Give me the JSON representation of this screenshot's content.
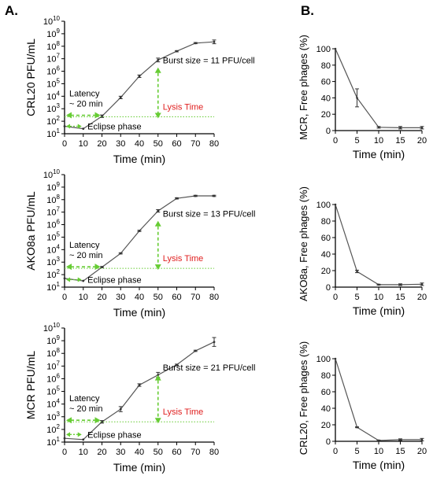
{
  "panel_labels": {
    "a": "A.",
    "b": "B."
  },
  "colors": {
    "line": "#555555",
    "annotation_green": "#66cc33",
    "lysis_red": "#e02020",
    "text": "#000000"
  },
  "chart_data": [
    {
      "type": "line",
      "panel": "A",
      "xlabel": "Time (min)",
      "ylabel": "CRL20 PFU/mL",
      "scale_y": "log10",
      "xlim": [
        0,
        80
      ],
      "ylim_exponent": [
        1,
        10
      ],
      "x_ticks": [
        "0",
        "10",
        "20",
        "30",
        "40",
        "50",
        "60",
        "70",
        "80"
      ],
      "y_ticks": [
        "10¹",
        "10²",
        "10³",
        "10⁴",
        "10⁵",
        "10⁶",
        "10⁷",
        "10⁸",
        "10⁹",
        "10¹⁰"
      ],
      "x": [
        0,
        10,
        20,
        30,
        40,
        50,
        60,
        70,
        80
      ],
      "log10_y": [
        1.6,
        1.4,
        2.4,
        3.9,
        5.6,
        6.9,
        7.6,
        8.25,
        8.35
      ],
      "log10_err": [
        0.0,
        0.0,
        0.1,
        0.1,
        0.1,
        0.15,
        0.05,
        0.05,
        0.15
      ],
      "annotations": {
        "burst_size": "Burst size = 11 PFU/cell",
        "lysis_time": "Lysis Time",
        "latency_line1": "Latency",
        "latency_line2": "~ 20 min",
        "eclipse": "Eclipse phase",
        "plateau_log10": 2.35
      }
    },
    {
      "type": "line",
      "panel": "A",
      "xlabel": "Time (min)",
      "ylabel": "AKO8a PFU/mL",
      "scale_y": "log10",
      "xlim": [
        0,
        80
      ],
      "ylim_exponent": [
        1,
        10
      ],
      "x_ticks": [
        "0",
        "10",
        "20",
        "30",
        "40",
        "50",
        "60",
        "70",
        "80"
      ],
      "y_ticks": [
        "10¹",
        "10²",
        "10³",
        "10⁴",
        "10⁵",
        "10⁶",
        "10⁷",
        "10⁸",
        "10⁹",
        "10¹⁰"
      ],
      "x": [
        0,
        10,
        20,
        30,
        40,
        50,
        60,
        70,
        80
      ],
      "log10_y": [
        1.7,
        1.5,
        2.6,
        3.7,
        5.5,
        7.1,
        8.1,
        8.3,
        8.3
      ],
      "log10_err": [
        0.0,
        0.0,
        0.05,
        0.05,
        0.05,
        0.1,
        0.05,
        0.05,
        0.05
      ],
      "annotations": {
        "burst_size": "Burst size = 13 PFU/cell",
        "lysis_time": "Lysis Time",
        "latency_line1": "Latency",
        "latency_line2": "~ 20 min",
        "eclipse": "Eclipse phase",
        "plateau_log10": 2.5
      }
    },
    {
      "type": "line",
      "panel": "A",
      "xlabel": "Time (min)",
      "ylabel": "MCR PFU/mL",
      "scale_y": "log10",
      "xlim": [
        0,
        80
      ],
      "ylim_exponent": [
        1,
        10
      ],
      "x_ticks": [
        "0",
        "10",
        "20",
        "30",
        "40",
        "50",
        "60",
        "70",
        "80"
      ],
      "y_ticks": [
        "10¹",
        "10²",
        "10³",
        "10⁴",
        "10⁵",
        "10⁶",
        "10⁷",
        "10⁸",
        "10⁹",
        "10¹⁰"
      ],
      "x": [
        0,
        10,
        20,
        30,
        40,
        50,
        60,
        70,
        80
      ],
      "log10_y": [
        1.3,
        1.2,
        2.6,
        3.6,
        5.5,
        6.3,
        7.1,
        8.2,
        8.9
      ],
      "log10_err": [
        0.0,
        0.0,
        0.1,
        0.2,
        0.1,
        0.2,
        0.05,
        0.05,
        0.35
      ],
      "annotations": {
        "burst_size": "Burst size = 21 PFU/cell",
        "lysis_time": "Lysis Time",
        "latency_line1": "Latency",
        "latency_line2": "~ 20 min",
        "eclipse": "Eclipse phase",
        "plateau_log10": 2.6
      }
    },
    {
      "type": "line",
      "panel": "B",
      "xlabel": "Time (min)",
      "ylabel": "MCR, Free phages (%)",
      "xlim": [
        0,
        20
      ],
      "ylim": [
        0,
        100
      ],
      "x_ticks": [
        "0",
        "5",
        "10",
        "15",
        "20"
      ],
      "y_ticks": [
        "0",
        "20",
        "40",
        "60",
        "80",
        "100"
      ],
      "x": [
        0,
        5,
        10,
        15,
        20
      ],
      "y": [
        100,
        40,
        4,
        3.5,
        3.5
      ],
      "err": [
        0,
        11,
        1,
        1.5,
        1.5
      ]
    },
    {
      "type": "line",
      "panel": "B",
      "xlabel": "Time (min)",
      "ylabel": "AKO8a, Free phages (%)",
      "xlim": [
        0,
        20
      ],
      "ylim": [
        0,
        100
      ],
      "x_ticks": [
        "0",
        "5",
        "10",
        "15",
        "20"
      ],
      "y_ticks": [
        "0",
        "20",
        "40",
        "60",
        "80",
        "100"
      ],
      "x": [
        0,
        5,
        10,
        15,
        20
      ],
      "y": [
        100,
        19,
        3,
        3,
        3.5
      ],
      "err": [
        0,
        1.5,
        0.5,
        1,
        1.5
      ]
    },
    {
      "type": "line",
      "panel": "B",
      "xlabel": "Time (min)",
      "ylabel": "CRL20, Free phages (%)",
      "xlim": [
        0,
        20
      ],
      "ylim": [
        0,
        100
      ],
      "x_ticks": [
        "0",
        "5",
        "10",
        "15",
        "20"
      ],
      "y_ticks": [
        "0",
        "20",
        "40",
        "60",
        "80",
        "100"
      ],
      "x": [
        0,
        5,
        10,
        15,
        20
      ],
      "y": [
        100,
        17,
        1,
        2,
        2
      ],
      "err": [
        0,
        0.5,
        0.5,
        1,
        1.5
      ]
    }
  ]
}
